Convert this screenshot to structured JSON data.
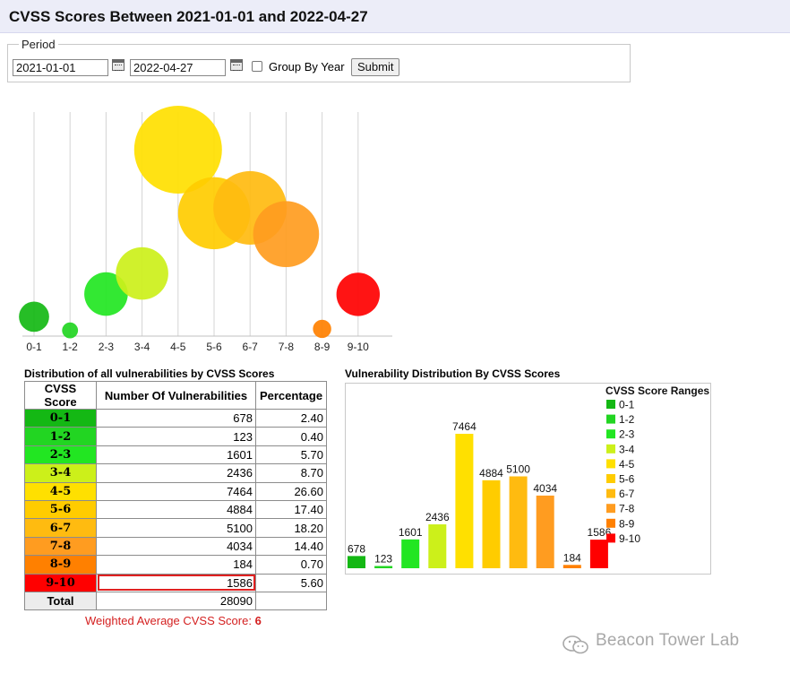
{
  "page": {
    "title": "CVSS Scores Between 2021-01-01 and 2022-04-27"
  },
  "period": {
    "legend": "Period",
    "start_date": "2021-01-01",
    "end_date": "2022-04-27",
    "group_by_year_label": "Group By Year",
    "group_by_year_checked": false,
    "submit_label": "Submit"
  },
  "table": {
    "title": "Distribution of all vulnerabilities by CVSS Scores",
    "headers": [
      "CVSS Score",
      "Number Of Vulnerabilities",
      "Percentage"
    ],
    "rows": [
      {
        "range": "0-1",
        "count": "678",
        "pct": "2.40",
        "color": "#14b814"
      },
      {
        "range": "1-2",
        "count": "123",
        "pct": "0.40",
        "color": "#22d522"
      },
      {
        "range": "2-3",
        "count": "1601",
        "pct": "5.70",
        "color": "#22e622"
      },
      {
        "range": "3-4",
        "count": "2436",
        "pct": "8.70",
        "color": "#ccf01a"
      },
      {
        "range": "4-5",
        "count": "7464",
        "pct": "26.60",
        "color": "#ffe000"
      },
      {
        "range": "5-6",
        "count": "4884",
        "pct": "17.40",
        "color": "#ffcc00"
      },
      {
        "range": "6-7",
        "count": "5100",
        "pct": "18.20",
        "color": "#ffbb10"
      },
      {
        "range": "7-8",
        "count": "4034",
        "pct": "14.40",
        "color": "#ff9c20"
      },
      {
        "range": "8-9",
        "count": "184",
        "pct": "0.70",
        "color": "#ff8000"
      },
      {
        "range": "9-10",
        "count": "1586",
        "pct": "5.60",
        "color": "#ff0000"
      }
    ],
    "total_label": "Total",
    "total_count": "28090",
    "weighted_label": "Weighted Average CVSS Score:",
    "weighted_value": "6"
  },
  "chart_data": [
    {
      "type": "scatter",
      "subtype": "bubble",
      "title": "",
      "categories": [
        "0-1",
        "1-2",
        "2-3",
        "3-4",
        "4-5",
        "5-6",
        "6-7",
        "7-8",
        "8-9",
        "9-10"
      ],
      "values": [
        678,
        123,
        1601,
        2436,
        7464,
        4884,
        5100,
        4034,
        184,
        1586
      ],
      "colors": [
        "#14b814",
        "#22d522",
        "#22e622",
        "#ccf01a",
        "#ffe000",
        "#ffcc00",
        "#ffbb10",
        "#ff9c20",
        "#ff8000",
        "#ff0000"
      ],
      "grid": true
    },
    {
      "type": "bar",
      "title": "Vulnerability Distribution By CVSS Scores",
      "categories": [
        "0-1",
        "1-2",
        "2-3",
        "3-4",
        "4-5",
        "5-6",
        "6-7",
        "7-8",
        "8-9",
        "9-10"
      ],
      "values": [
        678,
        123,
        1601,
        2436,
        7464,
        4884,
        5100,
        4034,
        184,
        1586
      ],
      "colors": [
        "#14b814",
        "#22d522",
        "#22e622",
        "#ccf01a",
        "#ffe000",
        "#ffcc00",
        "#ffbb10",
        "#ff9c20",
        "#ff8000",
        "#ff0000"
      ],
      "legend_title": "CVSS Score Ranges",
      "legend_position": "right",
      "ylim": [
        0,
        7464
      ]
    }
  ],
  "watermark": {
    "text": "Beacon Tower Lab"
  }
}
